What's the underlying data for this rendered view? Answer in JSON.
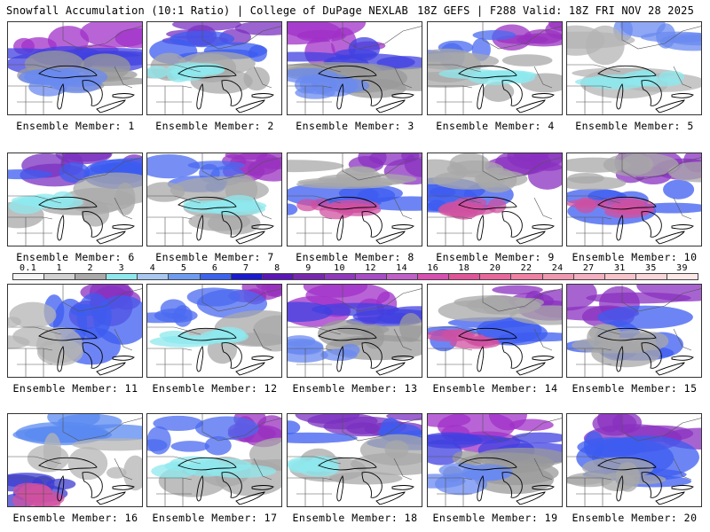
{
  "header": {
    "left": "Snowfall Accumulation (10:1 Ratio) | College of DuPage NEXLAB",
    "right": "18Z GEFS | F288 Valid: 18Z FRI NOV 28 2025"
  },
  "panels": [
    {
      "label": "Ensemble Member: 1",
      "pattern": "north-heavy"
    },
    {
      "label": "Ensemble Member: 2",
      "pattern": "band-north"
    },
    {
      "label": "Ensemble Member: 3",
      "pattern": "north-heavy"
    },
    {
      "label": "Ensemble Member: 4",
      "pattern": "patchy"
    },
    {
      "label": "Ensemble Member: 5",
      "pattern": "light"
    },
    {
      "label": "Ensemble Member: 6",
      "pattern": "band-north"
    },
    {
      "label": "Ensemble Member: 7",
      "pattern": "patchy"
    },
    {
      "label": "Ensemble Member: 8",
      "pattern": "diagonal"
    },
    {
      "label": "Ensemble Member: 9",
      "pattern": "diagonal"
    },
    {
      "label": "Ensemble Member: 10",
      "pattern": "diagonal"
    },
    {
      "label": "Ensemble Member: 11",
      "pattern": "east-heavy"
    },
    {
      "label": "Ensemble Member: 12",
      "pattern": "patchy"
    },
    {
      "label": "Ensemble Member: 13",
      "pattern": "north-heavy"
    },
    {
      "label": "Ensemble Member: 14",
      "pattern": "diagonal"
    },
    {
      "label": "Ensemble Member: 15",
      "pattern": "widespread"
    },
    {
      "label": "Ensemble Member: 16",
      "pattern": "southwest"
    },
    {
      "label": "Ensemble Member: 17",
      "pattern": "patchy"
    },
    {
      "label": "Ensemble Member: 18",
      "pattern": "band-north"
    },
    {
      "label": "Ensemble Member: 19",
      "pattern": "north-heavy"
    },
    {
      "label": "Ensemble Member: 20",
      "pattern": "widespread"
    }
  ],
  "scale": {
    "labels": [
      "0.1",
      "1",
      "2",
      "3",
      "4",
      "5",
      "6",
      "7",
      "8",
      "9",
      "10",
      "12",
      "14",
      "16",
      "18",
      "20",
      "22",
      "24",
      "27",
      "31",
      "35",
      "39"
    ],
    "colors": [
      "#f4f4f4",
      "#d2d2d2",
      "#aaaaaa",
      "#8ee8ee",
      "#a8c8f0",
      "#6e9cf0",
      "#3c64f0",
      "#1a1ad0",
      "#5a16b8",
      "#7828b0",
      "#9038c0",
      "#a84cc8",
      "#c060c8",
      "#d850b0",
      "#e05498",
      "#e8689c",
      "#f080a4",
      "#f098b0",
      "#f4b0c0",
      "#f8c4cc",
      "#fad6d8",
      "#fde8e8"
    ]
  }
}
